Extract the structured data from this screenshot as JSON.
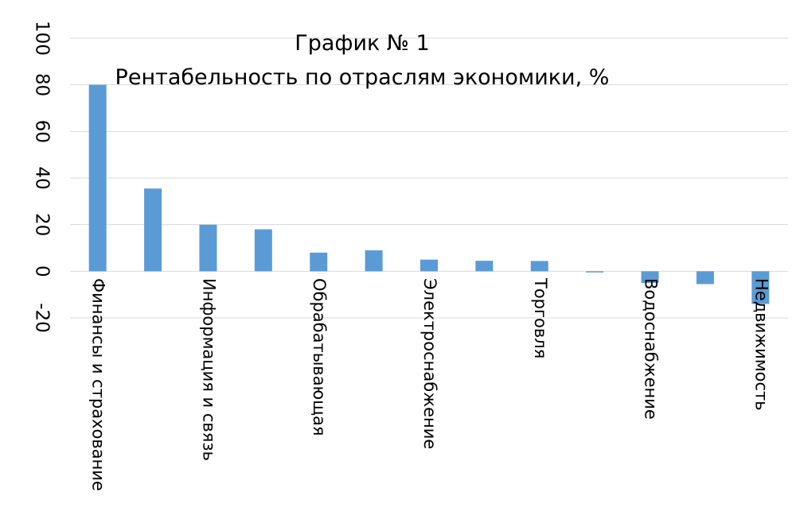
{
  "chart_data": {
    "type": "bar",
    "title": "График № 1",
    "subtitle": "Рентабельность по отраслям экономики, %",
    "categories": [
      "Финансы и страхование",
      null,
      "Информация и связь",
      null,
      "Обрабатывающая",
      null,
      "Электроснабжение",
      null,
      "Торговля",
      null,
      "Водоснабжение",
      null,
      "Недвижимость"
    ],
    "values": [
      80,
      35.5,
      20,
      18,
      8,
      9,
      5,
      4.5,
      4.4,
      -0.5,
      -5,
      -5.5,
      -14
    ],
    "color": "#5b9bd5",
    "ylim": [
      -20,
      100
    ],
    "yticks": [
      -20,
      0,
      20,
      40,
      60,
      80,
      100
    ],
    "grid": true
  }
}
